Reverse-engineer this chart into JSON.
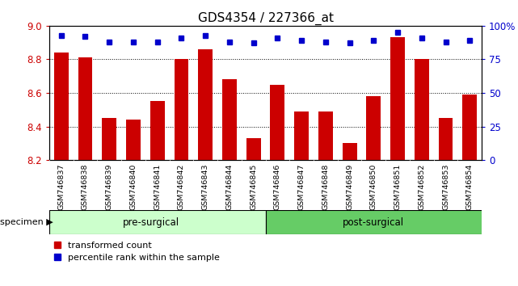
{
  "title": "GDS4354 / 227366_at",
  "categories": [
    "GSM746837",
    "GSM746838",
    "GSM746839",
    "GSM746840",
    "GSM746841",
    "GSM746842",
    "GSM746843",
    "GSM746844",
    "GSM746845",
    "GSM746846",
    "GSM746847",
    "GSM746848",
    "GSM746849",
    "GSM746850",
    "GSM746851",
    "GSM746852",
    "GSM746853",
    "GSM746854"
  ],
  "bar_values": [
    8.84,
    8.81,
    8.45,
    8.44,
    8.55,
    8.8,
    8.86,
    8.68,
    8.33,
    8.65,
    8.49,
    8.49,
    8.3,
    8.58,
    8.93,
    8.8,
    8.45,
    8.59
  ],
  "percentile_values": [
    93,
    92,
    88,
    88,
    88,
    91,
    93,
    88,
    87,
    91,
    89,
    88,
    87,
    89,
    95,
    91,
    88,
    89
  ],
  "bar_color": "#cc0000",
  "dot_color": "#0000cc",
  "ylim_left": [
    8.2,
    9.0
  ],
  "ylim_right": [
    0,
    100
  ],
  "right_ticks": [
    0,
    25,
    50,
    75,
    100
  ],
  "right_tick_labels": [
    "0",
    "25",
    "50",
    "75",
    "100%"
  ],
  "left_ticks": [
    8.2,
    8.4,
    8.6,
    8.8,
    9.0
  ],
  "grid_values": [
    8.4,
    8.6,
    8.8
  ],
  "pre_surgical_count": 9,
  "pre_surgical_label": "pre-surgical",
  "post_surgical_label": "post-surgical",
  "specimen_label": "specimen",
  "legend_bar_label": "transformed count",
  "legend_dot_label": "percentile rank within the sample",
  "bar_width": 0.6,
  "background_color": "#ffffff",
  "plot_bg_color": "#ffffff",
  "pre_color": "#ccffcc",
  "post_color": "#66cc66",
  "tick_bg_color": "#c8c8c8",
  "tick_label_color_left": "#cc0000",
  "tick_label_color_right": "#0000cc",
  "title_fontsize": 11
}
